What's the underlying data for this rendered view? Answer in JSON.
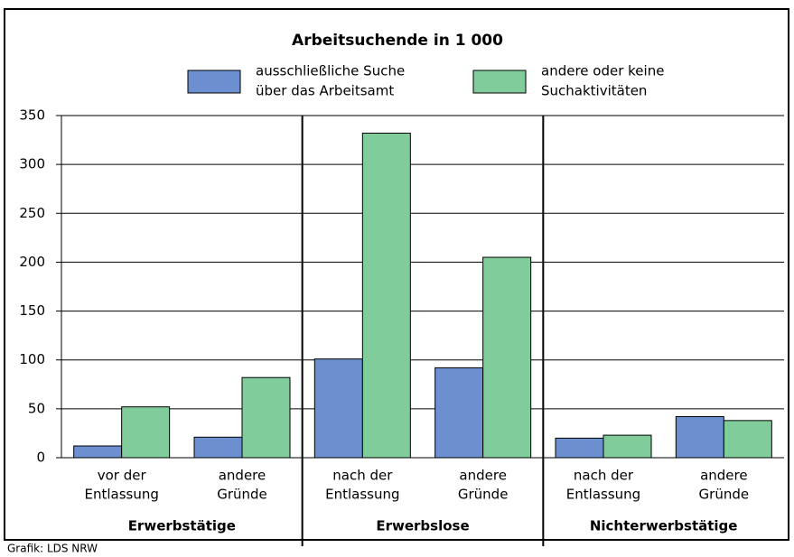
{
  "chart_data": {
    "type": "bar",
    "title": "Arbeitsuchende in 1 000",
    "categories": [
      [
        "vor der",
        "Entlassung"
      ],
      [
        "andere",
        "Gründe"
      ],
      [
        "nach der",
        "Entlassung"
      ],
      [
        "andere",
        "Gründe"
      ],
      [
        "nach der",
        "Entlassung"
      ],
      [
        "andere",
        "Gründe"
      ]
    ],
    "groups": [
      "Erwerbstätige",
      "Erwerbslose",
      "Nichterwerbstätige"
    ],
    "series": [
      {
        "name": [
          "ausschließliche Suche",
          "über das Arbeitsamt"
        ],
        "color": "#6b8fcf",
        "values": [
          12,
          21,
          101,
          92,
          20,
          42
        ]
      },
      {
        "name": [
          "andere oder keine",
          "Suchaktivitäten"
        ],
        "color": "#80cc9a",
        "values": [
          52,
          82,
          332,
          205,
          23,
          38
        ]
      }
    ],
    "ylim": [
      0,
      350
    ],
    "yticks": [
      0,
      50,
      100,
      150,
      200,
      250,
      300,
      350
    ],
    "grid": true,
    "source": "Grafik: LDS NRW"
  }
}
